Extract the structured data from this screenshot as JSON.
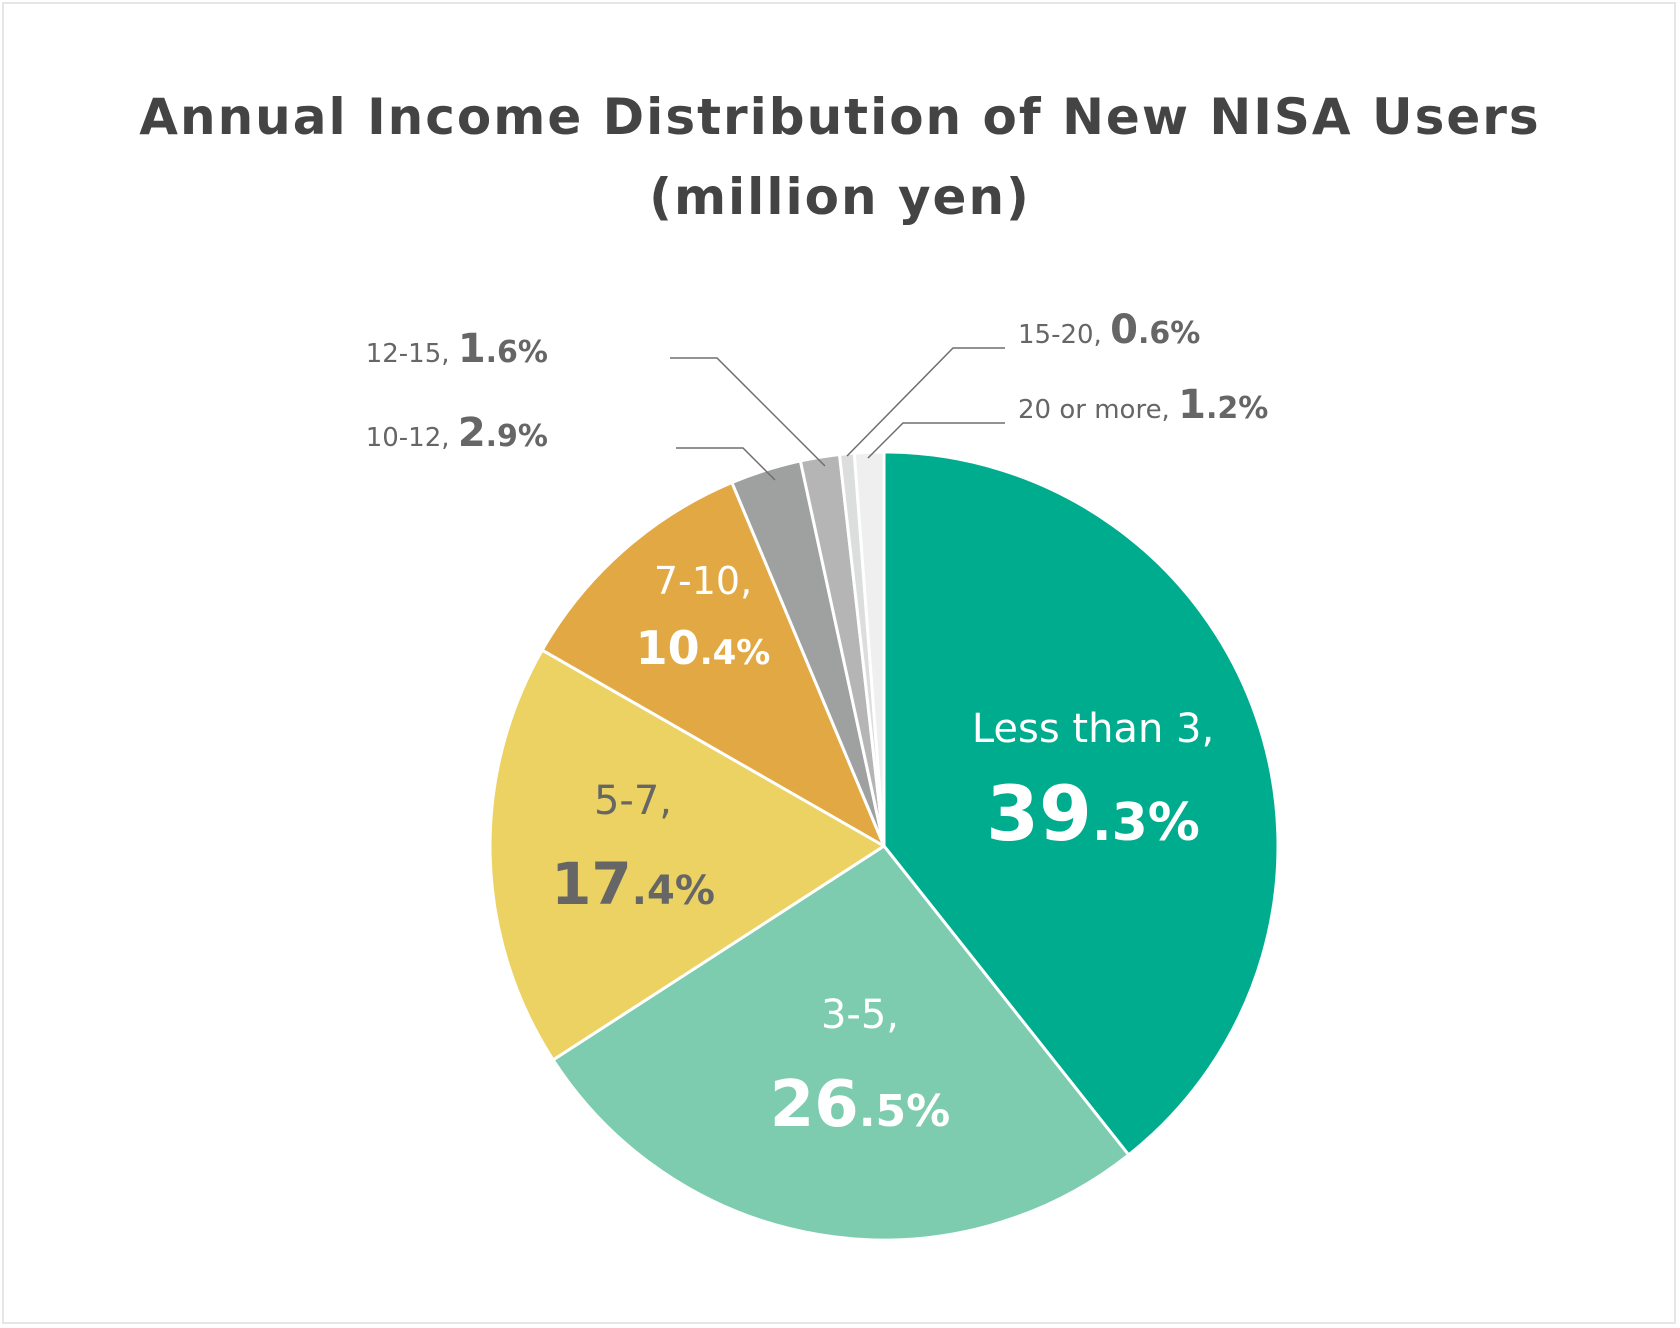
{
  "chart_data": {
    "type": "pie",
    "title_line1": "Annual Income Distribution of New NISA Users",
    "title_line2": "(million yen)",
    "slices": [
      {
        "label": "Less than 3,",
        "value": 39.3,
        "int": "39",
        "dec": ".3%",
        "color": "#00ac8e",
        "text_color": "#ffffff"
      },
      {
        "label": "3-5,",
        "value": 26.5,
        "int": "26",
        "dec": ".5%",
        "color": "#7dccb0",
        "text_color": "#ffffff"
      },
      {
        "label": "5-7,",
        "value": 17.4,
        "int": "17",
        "dec": ".4%",
        "color": "#ecd263",
        "text_color": "#666666"
      },
      {
        "label": "7-10,",
        "value": 10.4,
        "int": "10",
        "dec": ".4%",
        "color": "#e2a843",
        "text_color": "#ffffff"
      },
      {
        "label": "10-12,",
        "value": 2.9,
        "int": "2",
        "dec": ".9%",
        "color": "#9fa0a0",
        "text_color": "#666666"
      },
      {
        "label": "12-15,",
        "value": 1.6,
        "int": "1",
        "dec": ".6%",
        "color": "#b5b5b6",
        "text_color": "#666666"
      },
      {
        "label": "15-20,",
        "value": 0.6,
        "int": "0",
        "dec": ".6%",
        "color": "#dcdddd",
        "text_color": "#666666"
      },
      {
        "label": "20 or more,",
        "value": 1.2,
        "int": "1",
        "dec": ".2%",
        "color": "#efefef",
        "text_color": "#666666"
      }
    ]
  }
}
